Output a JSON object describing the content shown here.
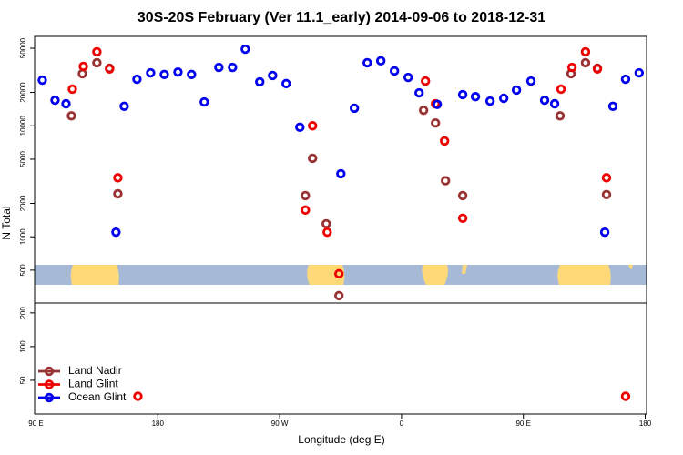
{
  "chart_data": {
    "type": "scatter",
    "title": "30S-20S February (Ver 11.1_early)   2014-09-06 to 2018-12-31",
    "x_label": "Longitude (deg E)",
    "y_label": "N Total",
    "log_scale": true,
    "xlim": [
      89,
      541
    ],
    "xticks": [
      {
        "value": 90,
        "label": "90 E"
      },
      {
        "value": 180,
        "label": "180"
      },
      {
        "value": 270,
        "label": "90 W"
      },
      {
        "value": 360,
        "label": "0"
      },
      {
        "value": 450,
        "label": "90 E"
      },
      {
        "value": 540,
        "label": "180"
      }
    ],
    "panels": [
      {
        "ylim": [
          253,
          63900
        ],
        "yticks": [
          500,
          1000,
          2000,
          5000,
          10000,
          20000,
          50000
        ]
      },
      {
        "ylim": [
          25,
          245
        ],
        "yticks": [
          50,
          100,
          200
        ]
      }
    ],
    "legend_position": "lower left",
    "series": [
      {
        "name": "Land Nadir",
        "color": "#993333",
        "x": [
          116.2,
          124.3,
          135.0,
          144.4,
          150.5,
          289.0,
          294.3,
          304.4,
          313.8,
          376.3,
          385.1,
          392.5,
          405.2,
          477.1,
          485.2,
          495.9,
          504.7,
          511.4
        ],
        "values": [
          12300,
          29500,
          37000,
          33000,
          2440,
          2350,
          5100,
          1310,
          295,
          13800,
          10600,
          3200,
          2350,
          12300,
          29500,
          37000,
          33000,
          2400
        ]
      },
      {
        "name": "Land Glint",
        "color": "#ee0000",
        "x": [
          116.9,
          125.0,
          135.0,
          144.4,
          150.5,
          165.3,
          289.0,
          294.3,
          305.1,
          313.8,
          377.7,
          385.1,
          391.8,
          405.2,
          477.8,
          485.9,
          495.9,
          504.7,
          511.4,
          525.5
        ],
        "values": [
          21400,
          34300,
          46400,
          32500,
          3400,
          36,
          1740,
          10000,
          1100,
          464,
          25300,
          15800,
          7300,
          1470,
          21400,
          33600,
          46400,
          32500,
          3400,
          36
        ]
      },
      {
        "name": "Ocean Glint",
        "color": "#0000ee",
        "x": [
          94.7,
          104.1,
          112.2,
          149.1,
          155.2,
          164.6,
          174.7,
          184.8,
          194.9,
          204.9,
          214.3,
          225.1,
          235.2,
          244.6,
          255.3,
          264.8,
          274.8,
          284.9,
          315.2,
          325.2,
          334.7,
          344.7,
          354.8,
          364.9,
          373.0,
          386.4,
          405.2,
          414.6,
          425.4,
          435.5,
          444.9,
          455.6,
          465.7,
          473.1,
          510.1,
          516.1,
          525.5,
          535.5
        ],
        "values": [
          25800,
          17000,
          15800,
          1100,
          15000,
          26300,
          30000,
          29000,
          30500,
          29000,
          16400,
          33600,
          33600,
          49000,
          24900,
          28400,
          24000,
          9700,
          3700,
          14400,
          37000,
          38500,
          31200,
          27300,
          19800,
          15600,
          19100,
          18300,
          16700,
          17700,
          21000,
          25300,
          17000,
          15800,
          1100,
          15000,
          26300,
          30000
        ]
      }
    ]
  }
}
